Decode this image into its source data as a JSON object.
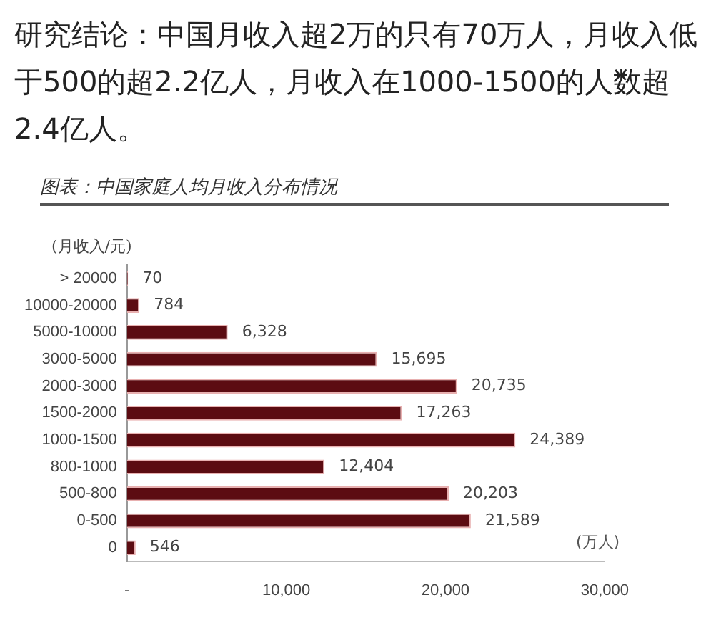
{
  "chart_data": {
    "type": "bar",
    "orientation": "horizontal",
    "title": "研究结论：中国月收入超2万的只有70万人，月收入低于500的超2.2亿人，月收入在1000-1500的人数超2.4亿人。",
    "subtitle": "图表：中国家庭人均月收入分布情况",
    "ylabel": "(月收入/元)",
    "xlabel": "(万人)",
    "categories": [
      "> 20000",
      "10000-20000",
      "5000-10000",
      "3000-5000",
      "2000-3000",
      "1500-2000",
      "1000-1500",
      "800-1000",
      "500-800",
      "0-500",
      "0"
    ],
    "values": [
      70,
      784,
      6328,
      15695,
      20735,
      17263,
      24389,
      12404,
      20203,
      21589,
      546
    ],
    "value_labels": [
      "70",
      "784",
      "6,328",
      "15,695",
      "20,735",
      "17,263",
      "24,389",
      "12,404",
      "20,203",
      "21,589",
      "546"
    ],
    "color": "#5c0c12",
    "xlim": [
      0,
      30000
    ],
    "xticks": [
      {
        "value": 0,
        "label": "-"
      },
      {
        "value": 10000,
        "label": "10,000"
      },
      {
        "value": 20000,
        "label": "20,000"
      },
      {
        "value": 30000,
        "label": "30,000"
      }
    ],
    "grid": false,
    "legend": false
  }
}
